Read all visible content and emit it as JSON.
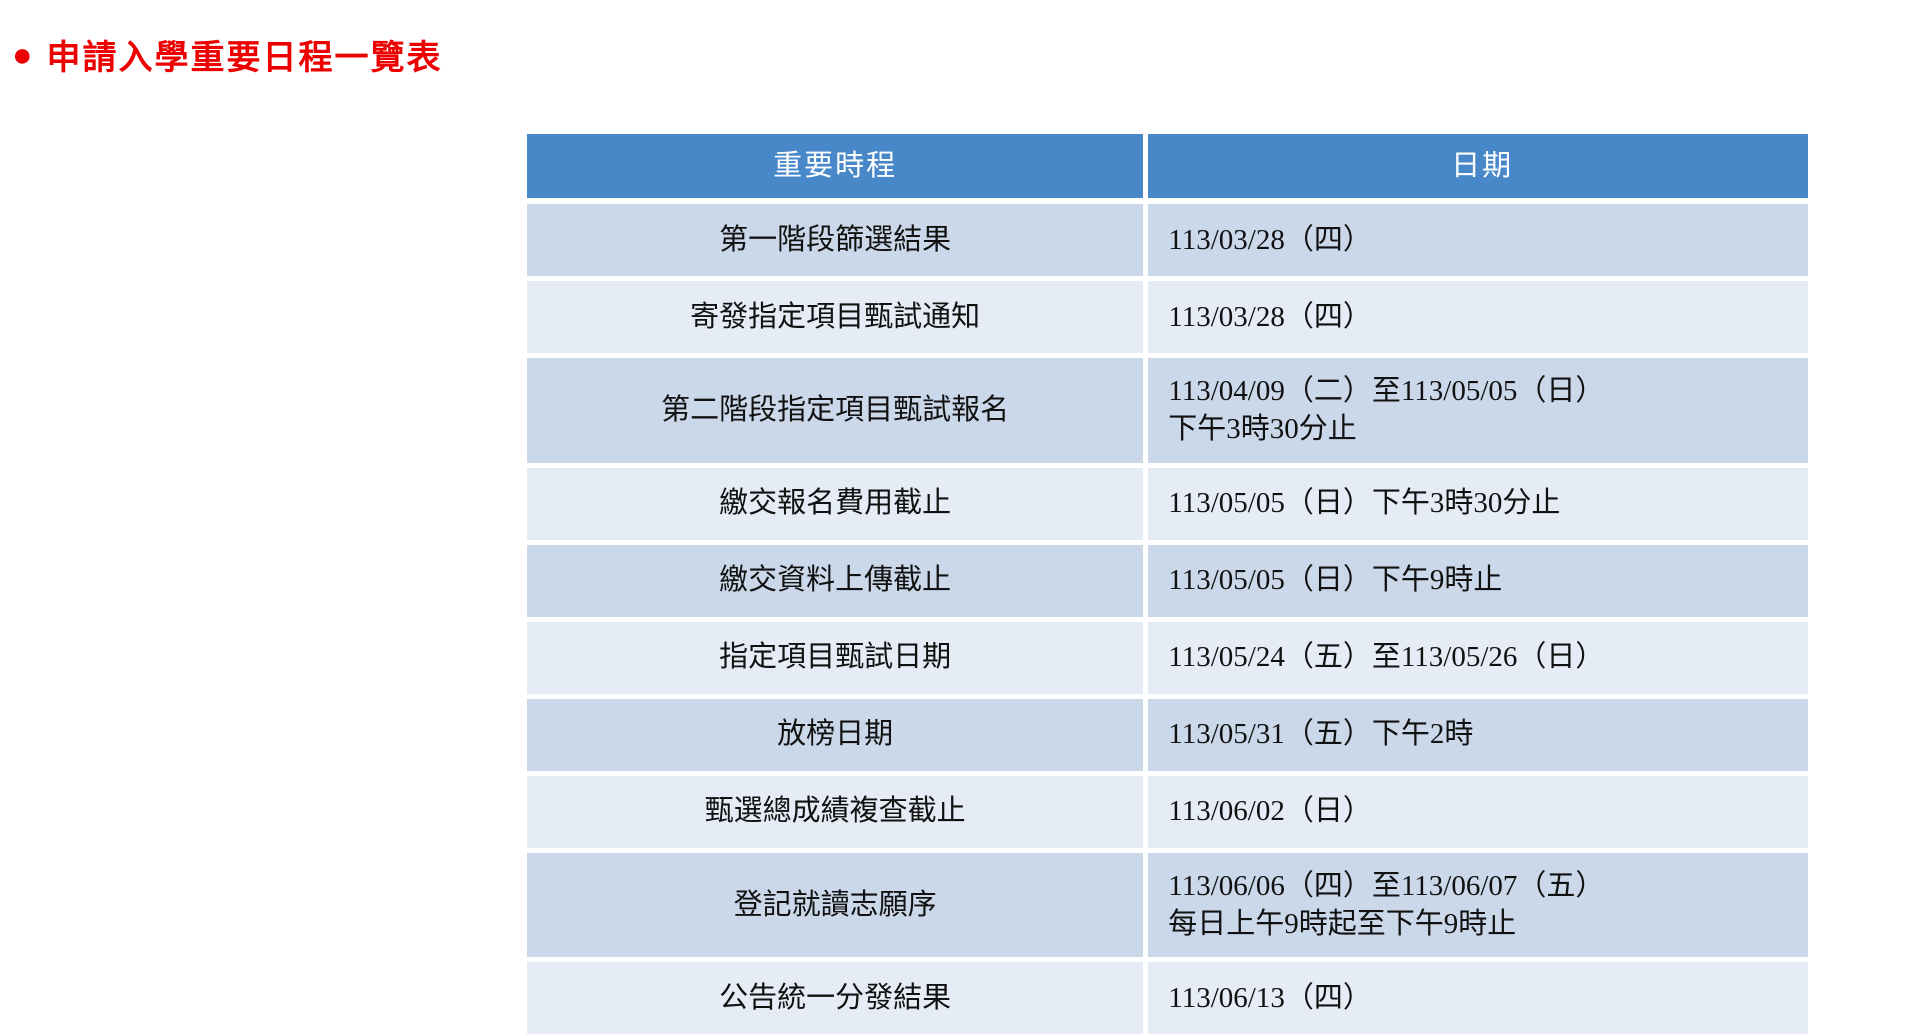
{
  "header": {
    "bullet": "●",
    "title": "申請入學重要日程一覽表"
  },
  "table": {
    "columns": [
      "重要時程",
      "日期"
    ],
    "rows": [
      {
        "event": "第一階段篩選結果",
        "date": "113/03/28（四）"
      },
      {
        "event": "寄發指定項目甄試通知",
        "date": "113/03/28（四）"
      },
      {
        "event": "第二階段指定項目甄試報名",
        "date": "113/04/09（二）至113/05/05（日）\n下午3時30分止"
      },
      {
        "event": "繳交報名費用截止",
        "date": "113/05/05（日）下午3時30分止"
      },
      {
        "event": "繳交資料上傳截止",
        "date": "113/05/05（日）下午9時止"
      },
      {
        "event": "指定項目甄試日期",
        "date": "113/05/24（五）至113/05/26（日）"
      },
      {
        "event": "放榜日期",
        "date": "113/05/31（五）下午2時"
      },
      {
        "event": "甄選總成績複查截止",
        "date": "113/06/02（日）"
      },
      {
        "event": "登記就讀志願序",
        "date": "113/06/06（四）至113/06/07（五）\n每日上午9時起至下午9時止"
      },
      {
        "event": "公告統一分發結果",
        "date": "113/06/13（四）"
      }
    ]
  },
  "colors": {
    "title_red": "#ed0000",
    "header_blue": "#4888c8",
    "band_dark": "#cad8e9",
    "band_light": "#e5ecf5",
    "header_text": "#ffffff",
    "body_text": "#111111"
  }
}
